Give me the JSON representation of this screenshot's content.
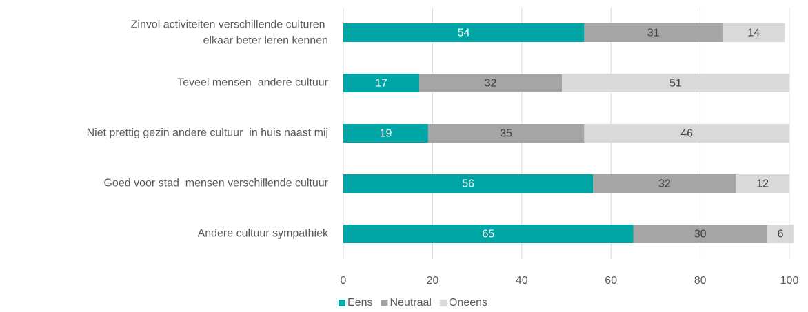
{
  "chart_data": {
    "type": "stacked_barh",
    "categories": [
      "Zinvol activiteiten verschillende culturen  elkaar beter leren kennen",
      "Teveel mensen  andere cultuur",
      "Niet prettig gezin andere cultuur  in huis naast mij",
      "Goed voor stad  mensen verschillende cultuur",
      "Andere cultuur sympathiek"
    ],
    "series": [
      {
        "name": "Eens",
        "color": "#00a6a6",
        "label_color": "#ffffff",
        "values": [
          54,
          17,
          19,
          56,
          65
        ]
      },
      {
        "name": "Neutraal",
        "color": "#a5a5a5",
        "label_color": "#404040",
        "values": [
          31,
          32,
          35,
          32,
          30
        ]
      },
      {
        "name": "Oneens",
        "color": "#d9d9d9",
        "label_color": "#404040",
        "values": [
          14,
          51,
          46,
          12,
          6
        ]
      }
    ],
    "xlim": [
      0,
      100
    ],
    "xticks": [
      0,
      20,
      40,
      60,
      80,
      100
    ],
    "grid": true,
    "legend": "bottom"
  }
}
